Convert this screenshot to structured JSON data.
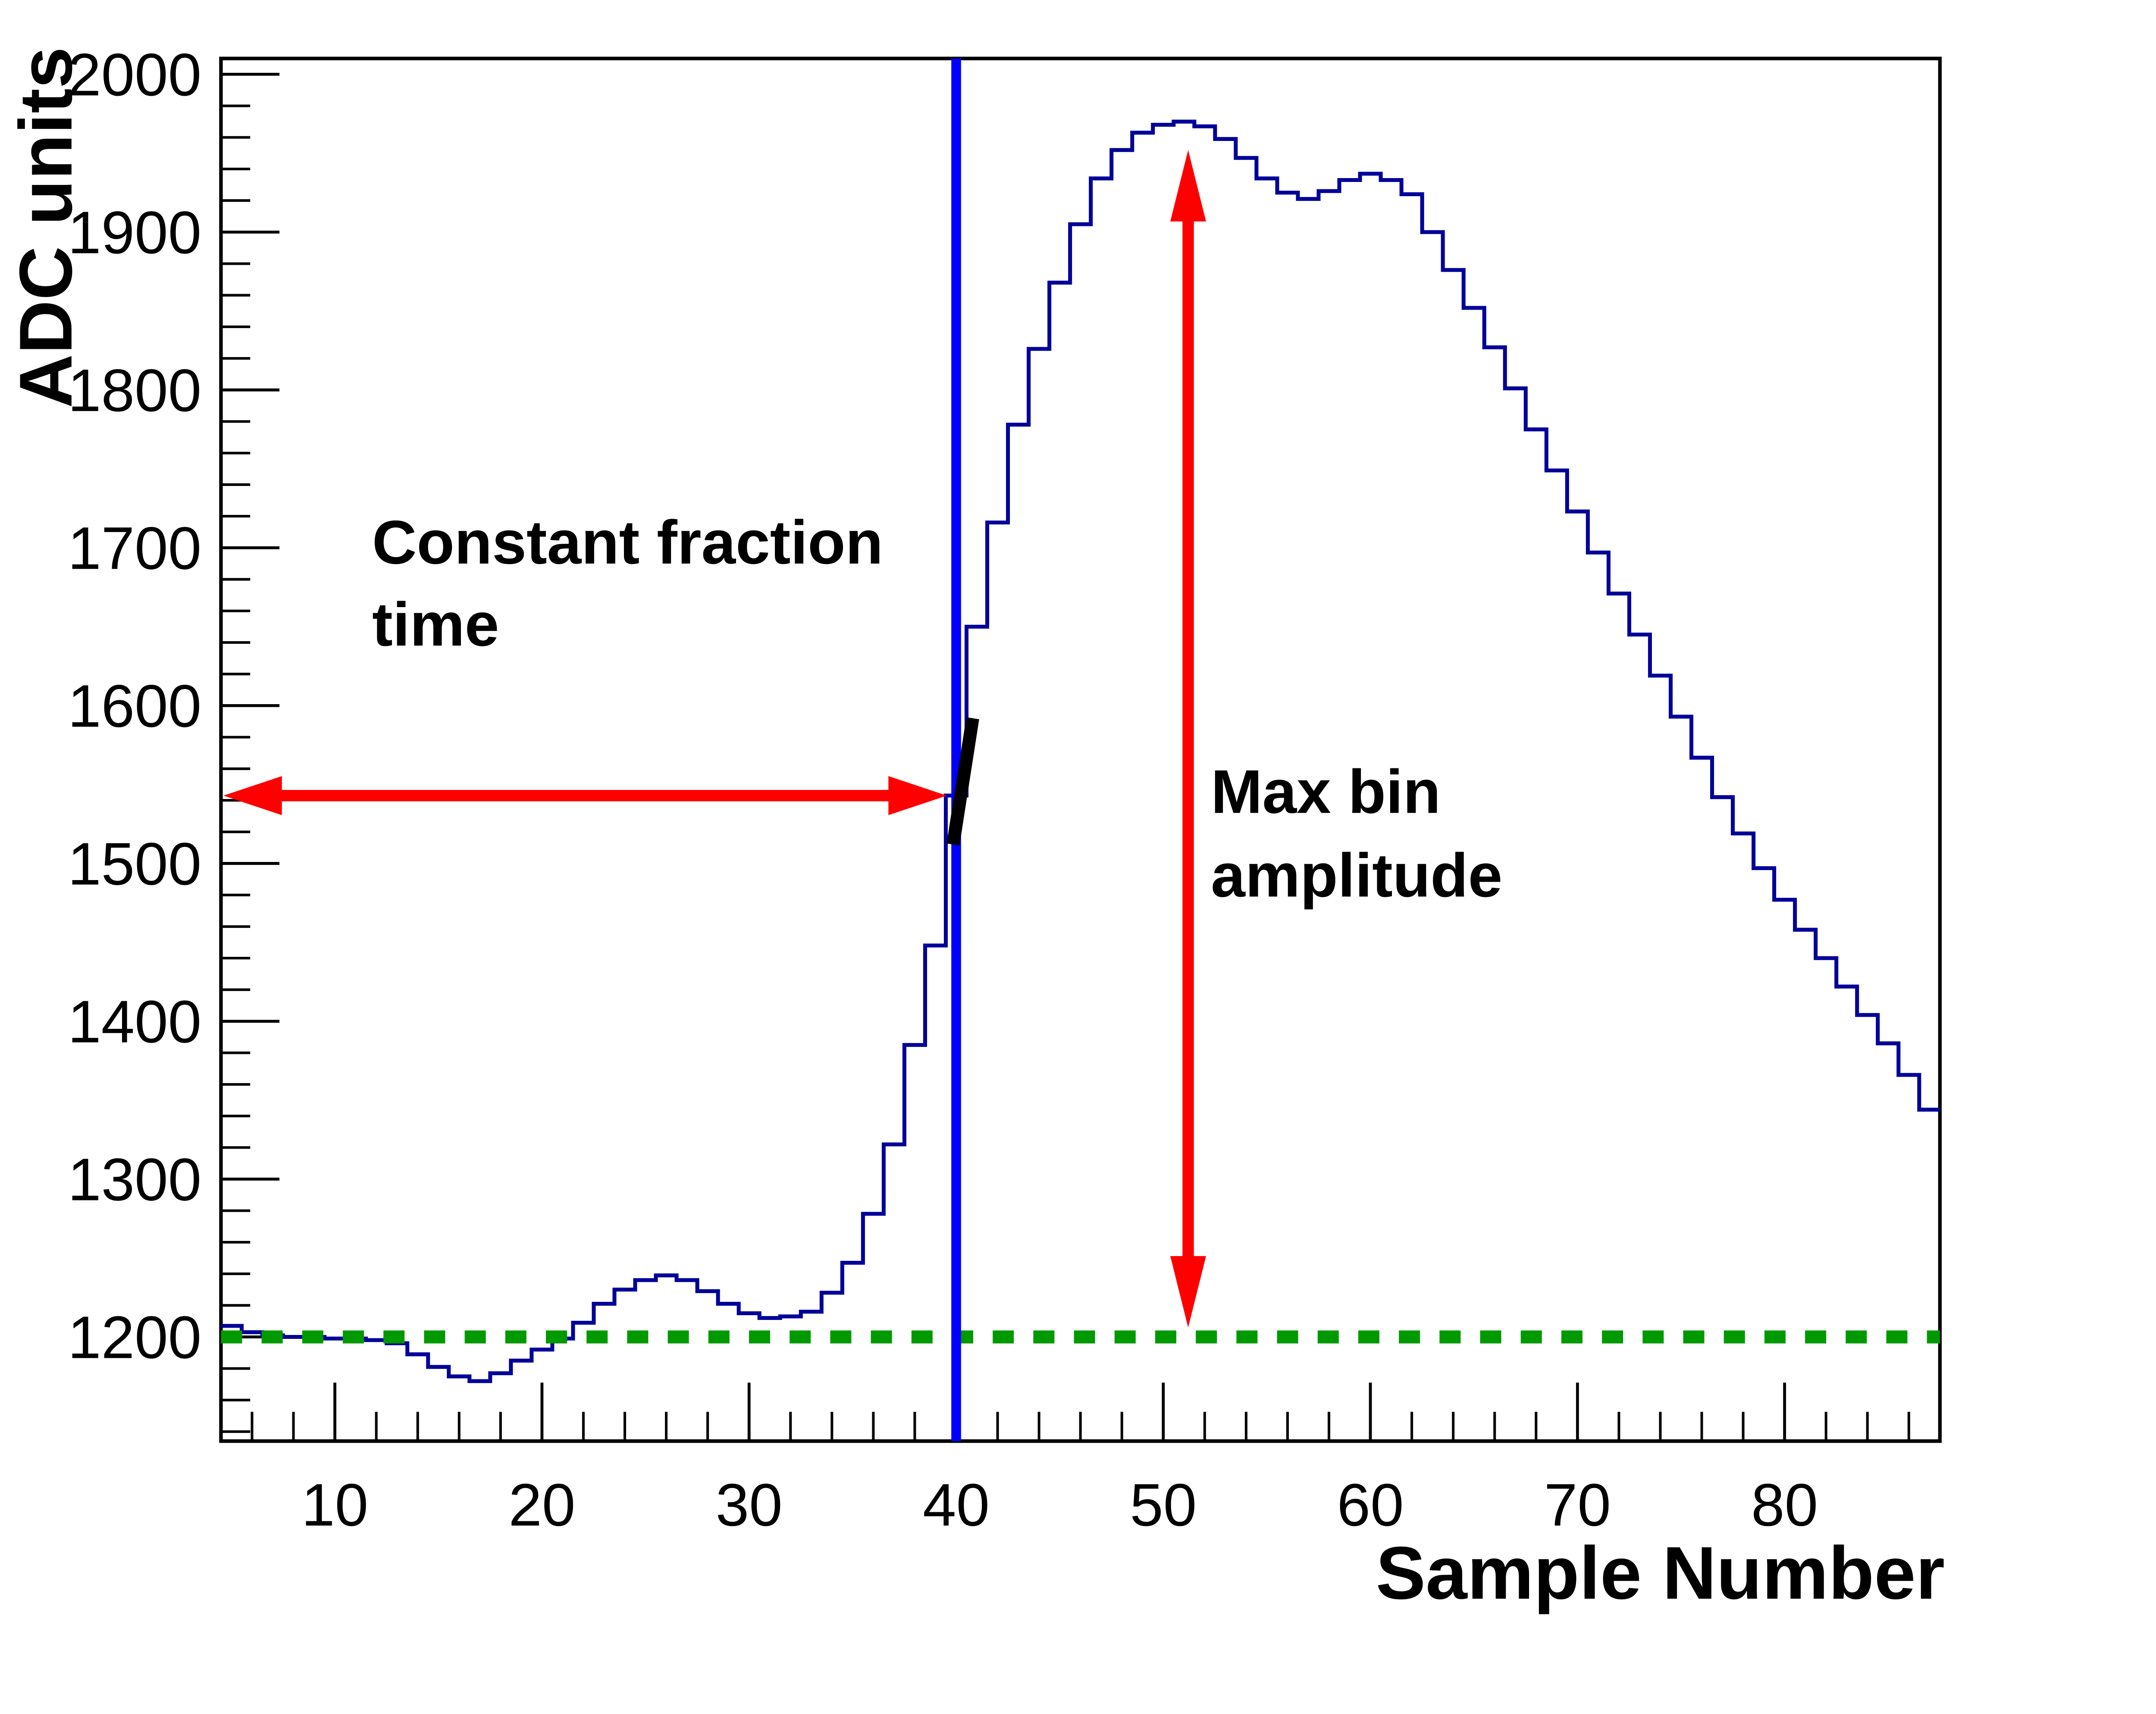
{
  "figure": {
    "background": "#ffffff",
    "frame_color": "#000000"
  },
  "chart_data": {
    "type": "line",
    "subtype": "step-histogram",
    "title": "",
    "xlabel": "Sample Number",
    "ylabel": "ADC units",
    "xlim": [
      4.5,
      87.5
    ],
    "ylim": [
      1134,
      2010
    ],
    "grid": false,
    "legend": null,
    "x_major_ticks": [
      10,
      20,
      30,
      40,
      50,
      60,
      70,
      80
    ],
    "x_major_tick_labels": [
      "10",
      "20",
      "30",
      "40",
      "50",
      "60",
      "70",
      "80"
    ],
    "x_minor_tick_step": 2,
    "y_major_ticks": [
      1200,
      1300,
      1400,
      1500,
      1600,
      1700,
      1800,
      1900,
      2000
    ],
    "y_major_tick_labels": [
      "1200",
      "1300",
      "1400",
      "1500",
      "1600",
      "1700",
      "1800",
      "1900",
      "2000"
    ],
    "y_minor_tick_step": 20,
    "series": [
      {
        "name": "adc-waveform",
        "color": "#000099",
        "line_width": 2.4,
        "x_start": 5,
        "x": [
          5,
          6,
          7,
          8,
          9,
          10,
          11,
          12,
          13,
          14,
          15,
          16,
          17,
          18,
          19,
          20,
          21,
          22,
          23,
          24,
          25,
          26,
          27,
          28,
          29,
          30,
          31,
          32,
          33,
          34,
          35,
          36,
          37,
          38,
          39,
          40,
          41,
          42,
          43,
          44,
          45,
          46,
          47,
          48,
          49,
          50,
          51,
          52,
          53,
          54,
          55,
          56,
          57,
          58,
          59,
          60,
          61,
          62,
          63,
          64,
          65,
          66,
          67,
          68,
          69,
          70,
          71,
          72,
          73,
          74,
          75,
          76,
          77,
          78,
          79,
          80,
          81,
          82,
          83,
          84,
          85,
          86,
          87
        ],
        "values": [
          1207,
          1203,
          1201,
          1200,
          1200,
          1199,
          1199,
          1198,
          1196,
          1189,
          1181,
          1175,
          1172,
          1177,
          1185,
          1192,
          1199,
          1209,
          1221,
          1230,
          1236,
          1239,
          1236,
          1229,
          1221,
          1215,
          1212,
          1213,
          1216,
          1228,
          1247,
          1278,
          1322,
          1385,
          1448,
          1543,
          1650,
          1716,
          1778,
          1826,
          1868,
          1905,
          1934,
          1952,
          1963,
          1968,
          1970,
          1967,
          1959,
          1947,
          1934,
          1925,
          1921,
          1926,
          1933,
          1937,
          1933,
          1924,
          1900,
          1876,
          1852,
          1827,
          1801,
          1775,
          1749,
          1723,
          1697,
          1671,
          1645,
          1619,
          1593,
          1567,
          1542,
          1519,
          1497,
          1477,
          1458,
          1440,
          1422,
          1404,
          1386,
          1366,
          1344
        ]
      }
    ],
    "reference_lines": [
      {
        "name": "pedestal-baseline-line",
        "orientation": "horizontal",
        "value": 1200,
        "color": "#009900",
        "style": "dashed",
        "dash": [
          13,
          12
        ],
        "width": 8
      },
      {
        "name": "constant-fraction-time-line",
        "orientation": "vertical",
        "value": 40,
        "color": "#0000ff",
        "style": "solid",
        "width": 6
      }
    ],
    "cf_crossing_marker": {
      "name": "cf-crossing-marker",
      "color": "#000000",
      "x1": 39.85,
      "y1": 1512,
      "x2": 40.8,
      "y2": 1592,
      "width": 8
    },
    "arrows": [
      {
        "name": "constant-fraction-arrow",
        "orientation": "horizontal",
        "at": 1543,
        "from": 4.62,
        "to": 39.55,
        "color": "#ff0000",
        "head_length": 36,
        "head_half_width": 12,
        "shaft_half_width": 3.5,
        "double_headed": true
      },
      {
        "name": "max-bin-amplitude-arrow",
        "orientation": "vertical",
        "at": 51.2,
        "from": 1206,
        "to": 1952,
        "color": "#ff0000",
        "head_length": 44,
        "head_half_width": 11,
        "shaft_half_width": 3.5,
        "double_headed": true
      }
    ],
    "annotations": [
      {
        "name": "constant-fraction-label-line1",
        "text": "Constant fraction",
        "x": 11.8,
        "y": 1690,
        "bold": true,
        "size": 38
      },
      {
        "name": "constant-fraction-label-line2",
        "text": "time",
        "x": 11.8,
        "y": 1638,
        "bold": true,
        "size": 38
      },
      {
        "name": "max-bin-label-line1",
        "text": "Max bin",
        "x": 52.3,
        "y": 1532,
        "bold": true,
        "size": 38
      },
      {
        "name": "max-bin-label-line2",
        "text": "amplitude",
        "x": 52.3,
        "y": 1479,
        "bold": true,
        "size": 38
      }
    ],
    "tick_label_font_size": 37,
    "axis_title_font_size": 46
  }
}
